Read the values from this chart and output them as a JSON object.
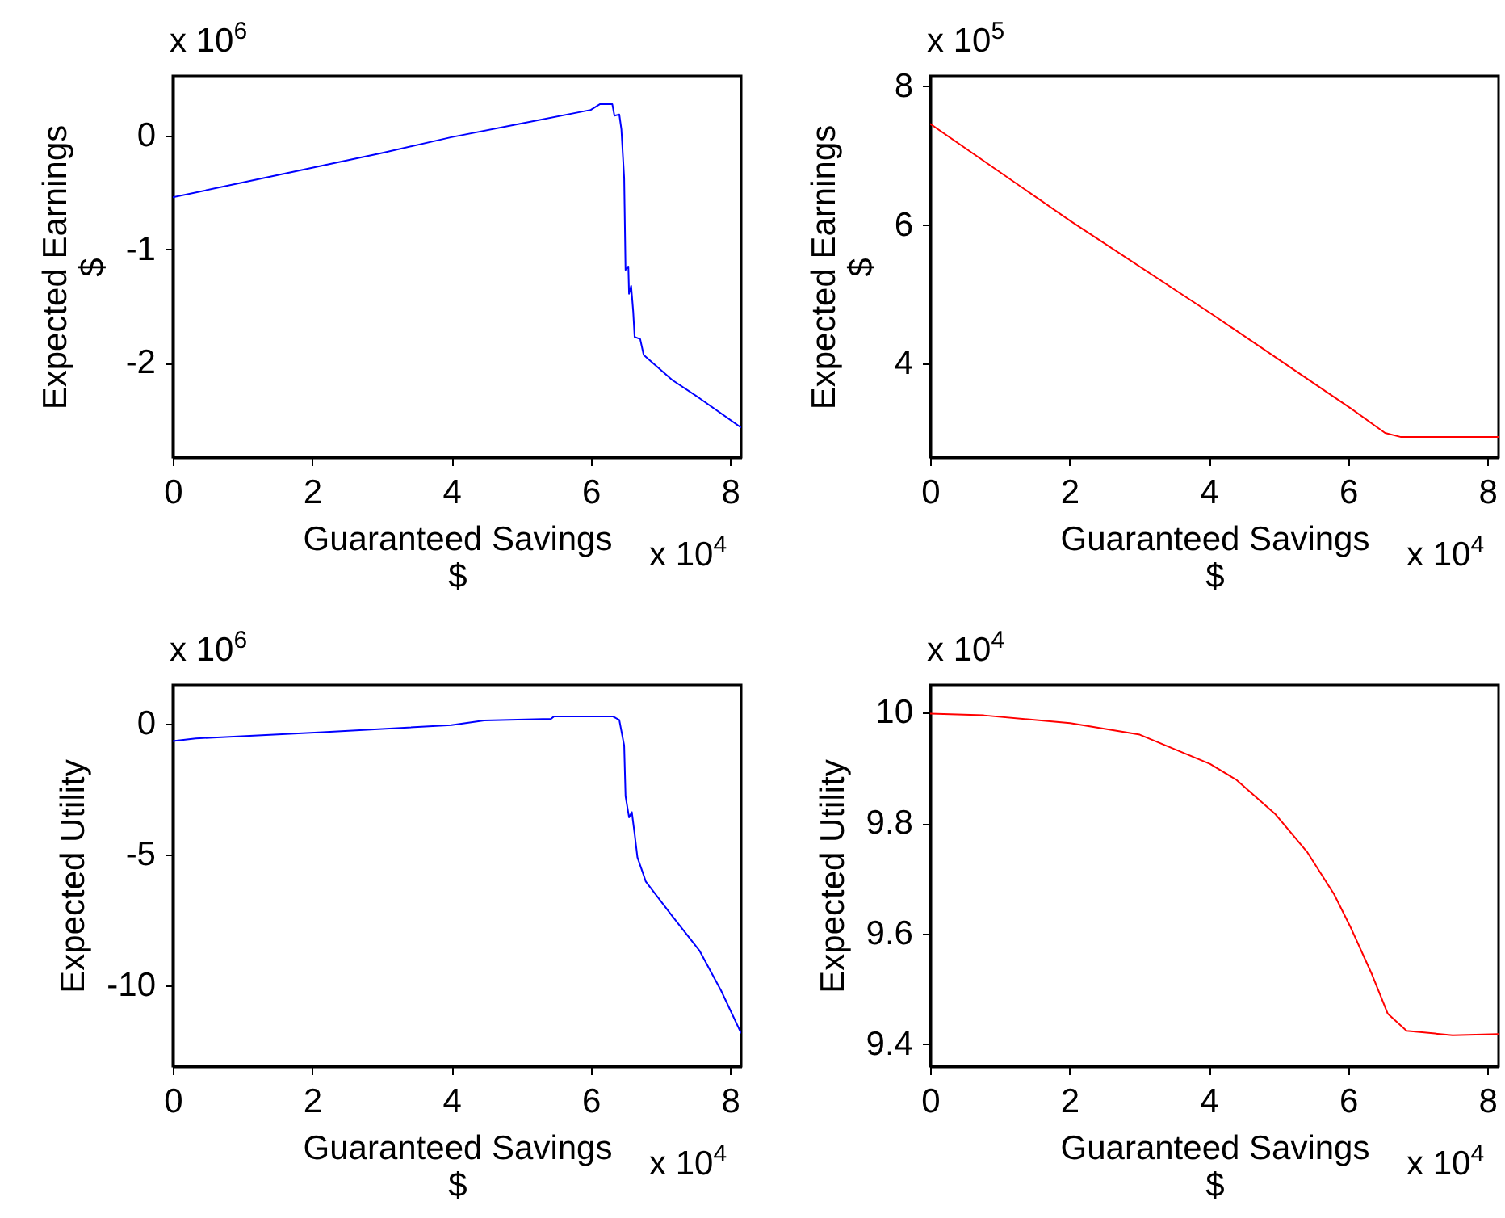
{
  "chart_data": [
    {
      "type": "line",
      "xlabel": "Guaranteed Savings\n$",
      "ylabel": "Expected Earnings\n$",
      "annotations": [
        "x 10$^{6}$",
        "x 10$^{4}$"
      ],
      "xlim": [
        0,
        8.16
      ],
      "ylim": [
        -2.83,
        0.53
      ],
      "xticks": [
        0,
        2,
        4,
        6,
        8
      ],
      "yticks": [
        -2,
        -1,
        0
      ],
      "x": [
        0,
        1,
        2,
        3,
        4,
        5,
        6,
        6.13,
        6.31,
        6.34,
        6.41,
        6.44,
        6.48,
        6.5,
        6.54,
        6.55,
        6.58,
        6.61,
        6.63,
        6.71,
        6.76,
        7.17,
        7.56,
        8.16
      ],
      "series": [
        {
          "color": "#0000ff",
          "values": [
            -0.54,
            -0.41,
            -0.28,
            -0.15,
            -0.01,
            0.11,
            0.23,
            0.28,
            0.28,
            0.18,
            0.19,
            0.06,
            -0.37,
            -1.18,
            -1.15,
            -1.39,
            -1.32,
            -1.55,
            -1.77,
            -1.79,
            -1.93,
            -2.15,
            -2.31,
            -2.57
          ]
        }
      ]
    },
    {
      "type": "line",
      "xlabel": "Guaranteed Savings\n$",
      "ylabel": "Expected Earnings\n$",
      "annotations": [
        "x 10$^{5}$",
        "x 10$^{4}$"
      ],
      "xlim": [
        0,
        8.16
      ],
      "ylim": [
        2.65,
        8.15
      ],
      "xticks": [
        0,
        2,
        4,
        6,
        8
      ],
      "yticks": [
        4,
        6,
        8
      ],
      "x": [
        0,
        2.01,
        4.02,
        6.03,
        6.53,
        6.76,
        8.16
      ],
      "series": [
        {
          "color": "#ff0000",
          "values": [
            7.46,
            6.06,
            4.73,
            3.36,
            3.0,
            2.94,
            2.94
          ]
        }
      ]
    },
    {
      "type": "line",
      "xlabel": "Guaranteed Savings\n$",
      "ylabel": "Expected Utility",
      "annotations": [
        "x 10$^{6}$",
        "x 10$^{4}$"
      ],
      "xlim": [
        0,
        8.16
      ],
      "ylim": [
        -13.1,
        1.5
      ],
      "xticks": [
        0,
        2,
        4,
        6,
        8
      ],
      "yticks": [
        -10,
        -5,
        0
      ],
      "x": [
        0,
        0.33,
        2.15,
        4,
        4.47,
        5.43,
        5.47,
        6.32,
        6.41,
        6.48,
        6.5,
        6.55,
        6.59,
        6.63,
        6.67,
        6.75,
        6.79,
        7.17,
        7.56,
        7.87,
        8.16
      ],
      "series": [
        {
          "color": "#0000ff",
          "values": [
            -0.65,
            -0.55,
            -0.31,
            -0.04,
            0.14,
            0.2,
            0.29,
            0.29,
            0.16,
            -0.82,
            -2.76,
            -3.57,
            -3.37,
            -4.2,
            -5.1,
            -5.71,
            -6.03,
            -7.35,
            -8.67,
            -10.2,
            -11.84
          ]
        }
      ]
    },
    {
      "type": "line",
      "xlabel": "Guaranteed Savings\n$",
      "ylabel": "Expected Utility",
      "annotations": [
        "x 10$^{4}$",
        "x 10$^{4}$"
      ],
      "xlim": [
        0,
        8.16
      ],
      "ylim": [
        9.36,
        10.05
      ],
      "xticks": [
        0,
        2,
        4,
        6,
        8
      ],
      "yticks": [
        9.4,
        9.6,
        9.8,
        10
      ],
      "x": [
        0,
        0.77,
        2.01,
        3.01,
        4.02,
        4.4,
        4.95,
        5.41,
        5.8,
        6.03,
        6.34,
        6.57,
        6.84,
        7.5,
        8.16
      ],
      "series": [
        {
          "color": "#ff0000",
          "values": [
            9.998,
            9.995,
            9.981,
            9.96,
            9.907,
            9.878,
            9.817,
            9.748,
            9.671,
            9.613,
            9.527,
            9.455,
            9.424,
            9.416,
            9.418
          ]
        }
      ]
    }
  ]
}
